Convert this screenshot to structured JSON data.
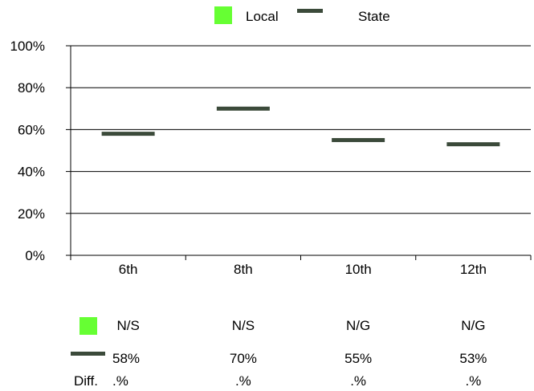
{
  "chart_data": {
    "type": "bar",
    "categories": [
      "6th",
      "8th",
      "10th",
      "12th"
    ],
    "series": [
      {
        "name": "Local",
        "values": [
          null,
          null,
          null,
          null
        ],
        "color": "#66ff33",
        "marker": "square"
      },
      {
        "name": "State",
        "values": [
          58,
          70,
          55,
          53
        ],
        "color": "#3b4a3a",
        "marker": "dash"
      }
    ],
    "ylim": [
      0,
      100
    ],
    "yticks": [
      0,
      20,
      40,
      60,
      80,
      100
    ],
    "ytick_labels": [
      "0%",
      "20%",
      "40%",
      "60%",
      "80%",
      "100%"
    ],
    "grid": true,
    "legend_position": "top"
  },
  "legend": [
    {
      "label": "Local",
      "icon": "local-square"
    },
    {
      "label": "State",
      "icon": "state-dash"
    }
  ],
  "table": {
    "local_row": [
      "N/S",
      "N/S",
      "N/G",
      "N/G"
    ],
    "state_row": [
      "58%",
      "70%",
      "55%",
      "53%"
    ],
    "diff_label": "Diff.",
    "diff_row": [
      ".%",
      ".%",
      ".%",
      ".%"
    ]
  }
}
